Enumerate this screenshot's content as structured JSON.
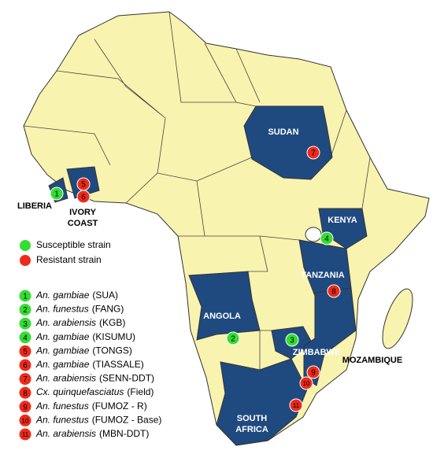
{
  "countries": [
    {
      "label_lines": [
        "LIBERIA"
      ]
    },
    {
      "label_lines": [
        "IVORY",
        "COAST"
      ]
    },
    {
      "label_lines": [
        "SUDAN"
      ]
    },
    {
      "label_lines": [
        "KENYA"
      ]
    },
    {
      "label_lines": [
        "TANZANIA"
      ]
    },
    {
      "label_lines": [
        "ANGOLA"
      ]
    },
    {
      "label_lines": [
        "ZIMBABWE"
      ]
    },
    {
      "label_lines": [
        "MOZAMBIQUE"
      ]
    },
    {
      "label_lines": [
        "SOUTH",
        "AFRICA"
      ]
    }
  ],
  "legend": [
    {
      "label": "Susceptible strain",
      "color": "#33dd33"
    },
    {
      "label": "Resistant strain",
      "color": "#ee2a1a"
    }
  ],
  "strains": [
    {
      "number": "1",
      "species": "An. gambiae",
      "strain": "(SUA)",
      "color": "#33dd33"
    },
    {
      "number": "2",
      "species": "An. funestus",
      "strain": "(FANG)",
      "color": "#33dd33"
    },
    {
      "number": "3",
      "species": "An. arabiensis",
      "strain": "(KGB)",
      "color": "#33dd33"
    },
    {
      "number": "4",
      "species": "An. gambiae",
      "strain": "(KISUMU)",
      "color": "#33dd33"
    },
    {
      "number": "5",
      "species": "An. gambiae",
      "strain": "(TONGS)",
      "color": "#ee2a1a"
    },
    {
      "number": "6",
      "species": "An. gambiae",
      "strain": "(TIASSALE)",
      "color": "#ee2a1a"
    },
    {
      "number": "7",
      "species": "An. arabiensis",
      "strain": "(SENN-DDT)",
      "color": "#ee2a1a"
    },
    {
      "number": "8",
      "species": "Cx. quinquefasciatus",
      "strain": "(Field)",
      "color": "#ee2a1a"
    },
    {
      "number": "9",
      "species": "An. funestus",
      "strain": "(FUMOZ - R)",
      "color": "#ee2a1a"
    },
    {
      "number": "10",
      "species": "An. funestus",
      "strain": "(FUMOZ - Base)",
      "color": "#ee2a1a"
    },
    {
      "number": "11",
      "species": "An. arabiensis",
      "strain": "(MBN-DDT)",
      "color": "#ee2a1a"
    }
  ],
  "markers": [
    {
      "number": "1",
      "color": "#33dd33"
    },
    {
      "number": "5",
      "color": "#ee2a1a"
    },
    {
      "number": "6",
      "color": "#ee2a1a"
    },
    {
      "number": "7",
      "color": "#ee2a1a"
    },
    {
      "number": "4",
      "color": "#33dd33"
    },
    {
      "number": "8",
      "color": "#ee2a1a"
    },
    {
      "number": "2",
      "color": "#33dd33"
    },
    {
      "number": "3",
      "color": "#33dd33"
    },
    {
      "number": "9",
      "color": "#ee2a1a"
    },
    {
      "number": "10",
      "color": "#ee2a1a"
    },
    {
      "number": "11",
      "color": "#ee2a1a"
    }
  ]
}
